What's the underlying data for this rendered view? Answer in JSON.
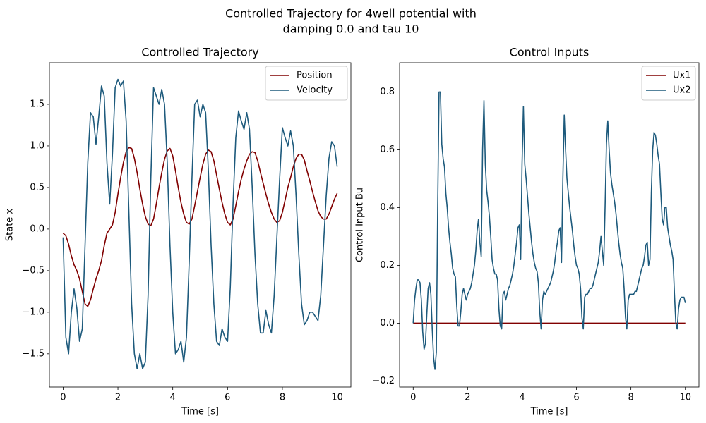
{
  "title": [
    "Controlled Trajectory for 4well potential with",
    "damping 0.0 and tau 10"
  ],
  "chart_data": [
    {
      "type": "line",
      "title": "Controlled Trajectory",
      "xlabel": "Time [s]",
      "ylabel": "State x",
      "xlim": [
        -0.5,
        10.5
      ],
      "ylim": [
        -1.9,
        2.0
      ],
      "legend": "upper right",
      "xticks": [
        0,
        2,
        4,
        6,
        8,
        10
      ],
      "yticks": [
        {
          "value": -1.5,
          "label": "−1.5"
        },
        {
          "value": -1,
          "label": "−1.0"
        },
        {
          "value": -0.5,
          "label": "−0.5"
        },
        {
          "value": 0,
          "label": "0.0"
        },
        0.5,
        {
          "value": 1,
          "label": "1.0"
        },
        1.5
      ],
      "x": [
        0,
        0.1,
        0.2,
        0.3,
        0.4,
        0.5,
        0.6,
        0.7,
        0.8,
        0.9,
        1,
        1.1,
        1.2,
        1.3,
        1.4,
        1.5,
        1.6,
        1.7,
        1.8,
        1.9,
        2,
        2.1,
        2.2,
        2.3,
        2.4,
        2.5,
        2.6,
        2.7,
        2.8,
        2.9,
        3,
        3.1,
        3.2,
        3.3,
        3.4,
        3.5,
        3.6,
        3.7,
        3.8,
        3.9,
        4,
        4.1,
        4.2,
        4.3,
        4.4,
        4.5,
        4.6,
        4.7,
        4.8,
        4.9,
        5,
        5.1,
        5.2,
        5.3,
        5.4,
        5.5,
        5.6,
        5.7,
        5.8,
        5.9,
        6,
        6.1,
        6.2,
        6.3,
        6.4,
        6.5,
        6.6,
        6.7,
        6.8,
        6.9,
        7,
        7.1,
        7.2,
        7.3,
        7.4,
        7.5,
        7.6,
        7.7,
        7.8,
        7.9,
        8,
        8.1,
        8.2,
        8.3,
        8.4,
        8.5,
        8.6,
        8.7,
        8.8,
        8.9,
        9,
        9.1,
        9.2,
        9.3,
        9.4,
        9.5,
        9.6,
        9.7,
        9.8,
        9.9,
        10
      ],
      "series": [
        {
          "name": "Position",
          "color": "#800000",
          "values": [
            -0.05,
            -0.08,
            -0.18,
            -0.32,
            -0.43,
            -0.5,
            -0.6,
            -0.75,
            -0.9,
            -0.93,
            -0.85,
            -0.72,
            -0.6,
            -0.5,
            -0.38,
            -0.2,
            -0.05,
            0.0,
            0.05,
            0.2,
            0.42,
            0.62,
            0.8,
            0.93,
            0.98,
            0.97,
            0.85,
            0.68,
            0.48,
            0.3,
            0.15,
            0.06,
            0.04,
            0.12,
            0.3,
            0.5,
            0.68,
            0.84,
            0.94,
            0.97,
            0.88,
            0.7,
            0.5,
            0.32,
            0.18,
            0.08,
            0.06,
            0.12,
            0.28,
            0.45,
            0.62,
            0.78,
            0.9,
            0.95,
            0.93,
            0.82,
            0.65,
            0.48,
            0.32,
            0.18,
            0.08,
            0.05,
            0.12,
            0.28,
            0.45,
            0.6,
            0.72,
            0.82,
            0.9,
            0.93,
            0.92,
            0.82,
            0.68,
            0.55,
            0.42,
            0.3,
            0.2,
            0.12,
            0.08,
            0.1,
            0.2,
            0.35,
            0.5,
            0.62,
            0.75,
            0.85,
            0.9,
            0.9,
            0.83,
            0.7,
            0.58,
            0.45,
            0.33,
            0.22,
            0.15,
            0.12,
            0.12,
            0.18,
            0.27,
            0.36,
            0.43
          ]
        },
        {
          "name": "Velocity",
          "color": "#1d5a7c",
          "values": [
            -0.1,
            -1.3,
            -1.5,
            -1.0,
            -0.72,
            -0.95,
            -1.35,
            -1.2,
            -0.2,
            0.8,
            1.4,
            1.35,
            1.02,
            1.35,
            1.72,
            1.6,
            0.8,
            0.3,
            0.9,
            1.7,
            1.8,
            1.72,
            1.78,
            1.3,
            0.2,
            -0.9,
            -1.5,
            -1.68,
            -1.5,
            -1.68,
            -1.6,
            -0.8,
            0.6,
            1.7,
            1.6,
            1.5,
            1.68,
            1.5,
            0.8,
            -0.2,
            -1.0,
            -1.5,
            -1.45,
            -1.35,
            -1.6,
            -1.3,
            -0.4,
            0.6,
            1.5,
            1.55,
            1.35,
            1.5,
            1.4,
            0.7,
            -0.2,
            -0.9,
            -1.35,
            -1.4,
            -1.2,
            -1.3,
            -1.35,
            -0.7,
            0.3,
            1.1,
            1.42,
            1.3,
            1.2,
            1.4,
            1.2,
            0.5,
            -0.3,
            -0.9,
            -1.25,
            -1.25,
            -0.98,
            -1.15,
            -1.25,
            -0.8,
            -0.1,
            0.6,
            1.22,
            1.1,
            1.0,
            1.18,
            1.0,
            0.4,
            -0.3,
            -0.9,
            -1.15,
            -1.1,
            -1.0,
            -1.0,
            -1.05,
            -1.1,
            -0.8,
            -0.2,
            0.4,
            0.85,
            1.05,
            1.0,
            0.75
          ]
        }
      ]
    },
    {
      "type": "line",
      "title": "Control Inputs",
      "xlabel": "Time [s]",
      "ylabel": "Control Input Bu",
      "xlim": [
        -0.5,
        10.5
      ],
      "ylim": [
        -0.221,
        0.901
      ],
      "legend": "upper right",
      "xticks": [
        0,
        2,
        4,
        6,
        8,
        10
      ],
      "yticks": [
        {
          "value": -0.2,
          "label": "−0.2"
        },
        {
          "value": 0,
          "label": "0.0"
        },
        0.2,
        0.4,
        0.6,
        0.8
      ],
      "x": [
        0,
        0.05,
        0.1,
        0.15,
        0.2,
        0.25,
        0.3,
        0.35,
        0.4,
        0.45,
        0.5,
        0.55,
        0.6,
        0.65,
        0.7,
        0.75,
        0.8,
        0.85,
        0.9,
        0.95,
        1,
        1.05,
        1.1,
        1.15,
        1.2,
        1.25,
        1.3,
        1.35,
        1.4,
        1.45,
        1.5,
        1.55,
        1.6,
        1.65,
        1.7,
        1.75,
        1.8,
        1.85,
        1.9,
        1.95,
        2,
        2.05,
        2.1,
        2.15,
        2.2,
        2.25,
        2.3,
        2.35,
        2.4,
        2.45,
        2.5,
        2.55,
        2.6,
        2.65,
        2.7,
        2.75,
        2.8,
        2.85,
        2.9,
        2.95,
        3,
        3.05,
        3.1,
        3.15,
        3.2,
        3.25,
        3.3,
        3.35,
        3.4,
        3.45,
        3.5,
        3.55,
        3.6,
        3.65,
        3.7,
        3.75,
        3.8,
        3.85,
        3.9,
        3.95,
        4,
        4.05,
        4.1,
        4.15,
        4.2,
        4.25,
        4.3,
        4.35,
        4.4,
        4.45,
        4.5,
        4.55,
        4.6,
        4.65,
        4.7,
        4.75,
        4.8,
        4.85,
        4.9,
        4.95,
        5,
        5.05,
        5.1,
        5.15,
        5.2,
        5.25,
        5.3,
        5.35,
        5.4,
        5.45,
        5.5,
        5.55,
        5.6,
        5.65,
        5.7,
        5.75,
        5.8,
        5.85,
        5.9,
        5.95,
        6,
        6.05,
        6.1,
        6.15,
        6.2,
        6.25,
        6.3,
        6.35,
        6.4,
        6.45,
        6.5,
        6.55,
        6.6,
        6.65,
        6.7,
        6.75,
        6.8,
        6.85,
        6.9,
        6.95,
        7,
        7.05,
        7.1,
        7.15,
        7.2,
        7.25,
        7.3,
        7.35,
        7.4,
        7.45,
        7.5,
        7.55,
        7.6,
        7.65,
        7.7,
        7.75,
        7.8,
        7.85,
        7.9,
        7.95,
        8,
        8.05,
        8.1,
        8.15,
        8.2,
        8.25,
        8.3,
        8.35,
        8.4,
        8.45,
        8.5,
        8.55,
        8.6,
        8.65,
        8.7,
        8.75,
        8.8,
        8.85,
        8.9,
        8.95,
        9,
        9.05,
        9.1,
        9.15,
        9.2,
        9.25,
        9.3,
        9.35,
        9.4,
        9.45,
        9.5,
        9.55,
        9.6,
        9.65,
        9.7,
        9.75,
        9.8,
        9.85,
        9.9,
        9.95,
        10
      ],
      "series": [
        {
          "name": "Ux1",
          "color": "#800000",
          "values": [
            0,
            0,
            0,
            0,
            0,
            0,
            0,
            0,
            0,
            0,
            0,
            0,
            0,
            0,
            0,
            0,
            0,
            0,
            0,
            0,
            0,
            0,
            0,
            0,
            0,
            0,
            0,
            0,
            0,
            0,
            0,
            0,
            0,
            0,
            0,
            0,
            0,
            0,
            0,
            0,
            0,
            0,
            0,
            0,
            0,
            0,
            0,
            0,
            0,
            0,
            0,
            0,
            0,
            0,
            0,
            0,
            0,
            0,
            0,
            0,
            0,
            0,
            0,
            0,
            0,
            0,
            0,
            0,
            0,
            0,
            0,
            0,
            0,
            0,
            0,
            0,
            0,
            0,
            0,
            0,
            0,
            0,
            0,
            0,
            0,
            0,
            0,
            0,
            0,
            0,
            0,
            0,
            0,
            0,
            0,
            0,
            0,
            0,
            0,
            0,
            0,
            0,
            0,
            0,
            0,
            0,
            0,
            0,
            0,
            0,
            0,
            0,
            0,
            0,
            0,
            0,
            0,
            0,
            0,
            0,
            0,
            0,
            0,
            0,
            0,
            0,
            0,
            0,
            0,
            0,
            0,
            0,
            0,
            0,
            0,
            0,
            0,
            0,
            0,
            0,
            0,
            0,
            0,
            0,
            0,
            0,
            0,
            0,
            0,
            0,
            0,
            0,
            0,
            0,
            0,
            0,
            0,
            0,
            0,
            0,
            0,
            0,
            0,
            0,
            0,
            0,
            0,
            0,
            0,
            0,
            0,
            0,
            0,
            0,
            0,
            0,
            0,
            0,
            0,
            0,
            0,
            0,
            0,
            0,
            0,
            0,
            0,
            0,
            0,
            0,
            0,
            0,
            0,
            0,
            0,
            0,
            0,
            0,
            0,
            0,
            0
          ]
        },
        {
          "name": "Ux2",
          "color": "#1d5a7c",
          "values": [
            0.0,
            0.08,
            0.12,
            0.15,
            0.15,
            0.14,
            0.08,
            -0.03,
            -0.09,
            -0.07,
            0.03,
            0.12,
            0.14,
            0.1,
            -0.02,
            -0.12,
            -0.16,
            -0.1,
            0.4,
            0.8,
            0.8,
            0.62,
            0.57,
            0.54,
            0.45,
            0.4,
            0.33,
            0.28,
            0.24,
            0.19,
            0.17,
            0.16,
            0.06,
            -0.01,
            -0.01,
            0.04,
            0.1,
            0.12,
            0.1,
            0.08,
            0.1,
            0.11,
            0.12,
            0.14,
            0.17,
            0.2,
            0.25,
            0.32,
            0.36,
            0.28,
            0.23,
            0.6,
            0.77,
            0.55,
            0.46,
            0.42,
            0.37,
            0.3,
            0.22,
            0.19,
            0.17,
            0.17,
            0.15,
            0.05,
            -0.01,
            -0.02,
            0.1,
            0.11,
            0.08,
            0.1,
            0.12,
            0.13,
            0.15,
            0.17,
            0.2,
            0.24,
            0.28,
            0.33,
            0.34,
            0.22,
            0.55,
            0.75,
            0.55,
            0.5,
            0.44,
            0.38,
            0.33,
            0.28,
            0.24,
            0.21,
            0.19,
            0.18,
            0.14,
            0.04,
            -0.02,
            0.08,
            0.11,
            0.1,
            0.11,
            0.12,
            0.13,
            0.14,
            0.16,
            0.18,
            0.21,
            0.25,
            0.28,
            0.32,
            0.33,
            0.21,
            0.5,
            0.72,
            0.6,
            0.5,
            0.45,
            0.4,
            0.36,
            0.32,
            0.27,
            0.23,
            0.2,
            0.19,
            0.17,
            0.12,
            0.02,
            -0.02,
            0.09,
            0.1,
            0.1,
            0.11,
            0.12,
            0.12,
            0.13,
            0.15,
            0.17,
            0.19,
            0.21,
            0.25,
            0.3,
            0.25,
            0.2,
            0.4,
            0.62,
            0.7,
            0.6,
            0.52,
            0.48,
            0.45,
            0.42,
            0.38,
            0.33,
            0.28,
            0.24,
            0.21,
            0.19,
            0.12,
            0.02,
            -0.02,
            0.08,
            0.1,
            0.1,
            0.1,
            0.1,
            0.11,
            0.11,
            0.13,
            0.15,
            0.17,
            0.19,
            0.2,
            0.23,
            0.27,
            0.28,
            0.2,
            0.22,
            0.45,
            0.6,
            0.66,
            0.65,
            0.62,
            0.58,
            0.55,
            0.45,
            0.36,
            0.34,
            0.4,
            0.4,
            0.33,
            0.3,
            0.27,
            0.25,
            0.22,
            0.1,
            0.0,
            -0.02,
            0.05,
            0.08,
            0.09,
            0.09,
            0.09,
            0.07
          ]
        }
      ]
    }
  ]
}
